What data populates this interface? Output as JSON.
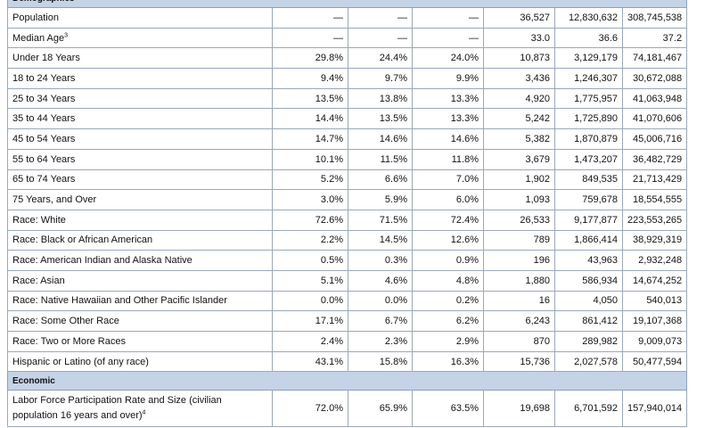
{
  "sections": [
    {
      "title": "Demographics",
      "rows": [
        {
          "label": "Population",
          "sup": "",
          "values": [
            "—",
            "—",
            "—",
            "36,527",
            "12,830,632",
            "308,745,538"
          ]
        },
        {
          "label": "Median Age",
          "sup": "3",
          "values": [
            "—",
            "—",
            "—",
            "33.0",
            "36.6",
            "37.2"
          ]
        },
        {
          "label": "Under 18 Years",
          "sup": "",
          "values": [
            "29.8%",
            "24.4%",
            "24.0%",
            "10,873",
            "3,129,179",
            "74,181,467"
          ]
        },
        {
          "label": "18 to 24 Years",
          "sup": "",
          "values": [
            "9.4%",
            "9.7%",
            "9.9%",
            "3,436",
            "1,246,307",
            "30,672,088"
          ]
        },
        {
          "label": "25 to 34 Years",
          "sup": "",
          "values": [
            "13.5%",
            "13.8%",
            "13.3%",
            "4,920",
            "1,775,957",
            "41,063,948"
          ]
        },
        {
          "label": "35 to 44 Years",
          "sup": "",
          "values": [
            "14.4%",
            "13.5%",
            "13.3%",
            "5,242",
            "1,725,890",
            "41,070,606"
          ]
        },
        {
          "label": "45 to 54 Years",
          "sup": "",
          "values": [
            "14.7%",
            "14.6%",
            "14.6%",
            "5,382",
            "1,870,879",
            "45,006,716"
          ]
        },
        {
          "label": "55 to 64 Years",
          "sup": "",
          "values": [
            "10.1%",
            "11.5%",
            "11.8%",
            "3,679",
            "1,473,207",
            "36,482,729"
          ]
        },
        {
          "label": "65 to 74 Years",
          "sup": "",
          "values": [
            "5.2%",
            "6.6%",
            "7.0%",
            "1,902",
            "849,535",
            "21,713,429"
          ]
        },
        {
          "label": "75 Years, and Over",
          "sup": "",
          "values": [
            "3.0%",
            "5.9%",
            "6.0%",
            "1,093",
            "759,678",
            "18,554,555"
          ]
        },
        {
          "label": "Race:  White",
          "sup": "",
          "values": [
            "72.6%",
            "71.5%",
            "72.4%",
            "26,533",
            "9,177,877",
            "223,553,265"
          ]
        },
        {
          "label": "Race:  Black or African American",
          "sup": "",
          "values": [
            "2.2%",
            "14.5%",
            "12.6%",
            "789",
            "1,866,414",
            "38,929,319"
          ]
        },
        {
          "label": "Race:  American Indian and Alaska Native",
          "sup": "",
          "values": [
            "0.5%",
            "0.3%",
            "0.9%",
            "196",
            "43,963",
            "2,932,248"
          ]
        },
        {
          "label": "Race:  Asian",
          "sup": "",
          "values": [
            "5.1%",
            "4.6%",
            "4.8%",
            "1,880",
            "586,934",
            "14,674,252"
          ]
        },
        {
          "label": "Race:  Native Hawaiian and Other Pacific Islander",
          "sup": "",
          "values": [
            "0.0%",
            "0.0%",
            "0.2%",
            "16",
            "4,050",
            "540,013"
          ]
        },
        {
          "label": "Race:  Some Other Race",
          "sup": "",
          "values": [
            "17.1%",
            "6.7%",
            "6.2%",
            "6,243",
            "861,412",
            "19,107,368"
          ]
        },
        {
          "label": "Race:  Two or More Races",
          "sup": "",
          "values": [
            "2.4%",
            "2.3%",
            "2.9%",
            "870",
            "289,982",
            "9,009,073"
          ]
        },
        {
          "label": "Hispanic or Latino (of any race)",
          "sup": "",
          "values": [
            "43.1%",
            "15.8%",
            "16.3%",
            "15,736",
            "2,027,578",
            "50,477,594"
          ]
        }
      ]
    },
    {
      "title": "Economic",
      "rows": [
        {
          "label": "Labor Force Participation Rate and Size (civilian population 16 years and over)",
          "sup": "4",
          "values": [
            "72.0%",
            "65.9%",
            "63.5%",
            "19,698",
            "6,701,592",
            "157,940,014"
          ]
        }
      ]
    }
  ]
}
